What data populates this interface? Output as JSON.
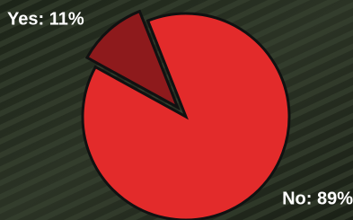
{
  "chart_data": {
    "type": "pie",
    "values": [
      11,
      89
    ],
    "value_labels": [
      "Yes: 11%",
      "No: 89%"
    ],
    "colors": [
      "#8e1a1c",
      "#e32b2b"
    ]
  }
}
